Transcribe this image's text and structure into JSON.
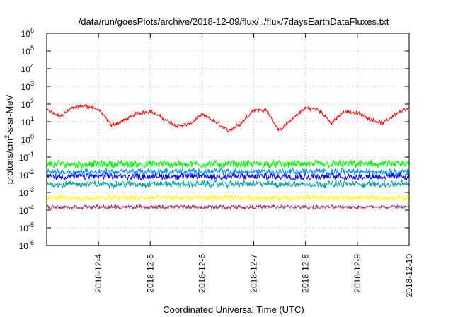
{
  "chart_data": {
    "type": "line",
    "title": "/data/run/goesPlots/archive/2018-12-09/flux/../flux/7daysEarthDataFluxes.txt",
    "xlabel": "Coordinated Universal Time (UTC)",
    "ylabel_parts": [
      "protons/cm",
      "2",
      "-s-sr-MeV"
    ],
    "yscale": "log",
    "ylim_exponent": [
      -6,
      6
    ],
    "y_ticks": [
      {
        "base": "10",
        "exp": "-6"
      },
      {
        "base": "10",
        "exp": "-5"
      },
      {
        "base": "10",
        "exp": "-4"
      },
      {
        "base": "10",
        "exp": "-3"
      },
      {
        "base": "10",
        "exp": "-2"
      },
      {
        "base": "10",
        "exp": "-1"
      },
      {
        "base": "10",
        "exp": "0"
      },
      {
        "base": "10",
        "exp": "1"
      },
      {
        "base": "10",
        "exp": "2"
      },
      {
        "base": "10",
        "exp": "3"
      },
      {
        "base": "10",
        "exp": "4"
      },
      {
        "base": "10",
        "exp": "5"
      },
      {
        "base": "10",
        "exp": "6"
      }
    ],
    "xlim": [
      "2018-12-03 00:00",
      "2018-12-10 00:00"
    ],
    "x_ticks": [
      "2018-12-4",
      "2018-12-5",
      "2018-12-6",
      "2018-12-7",
      "2018-12-8",
      "2018-12-9",
      "2018-12-10"
    ],
    "grid": true,
    "legend": "none",
    "series": [
      {
        "color": "#ff0000",
        "noise_decades": 0.18,
        "x": [
          "2018-12-03 00:00",
          "2018-12-03 06:00",
          "2018-12-03 12:00",
          "2018-12-03 18:00",
          "2018-12-04 00:00",
          "2018-12-04 06:00",
          "2018-12-04 12:00",
          "2018-12-04 18:00",
          "2018-12-05 00:00",
          "2018-12-05 06:00",
          "2018-12-05 12:00",
          "2018-12-05 18:00",
          "2018-12-06 00:00",
          "2018-12-06 06:00",
          "2018-12-06 12:00",
          "2018-12-06 18:00",
          "2018-12-07 00:00",
          "2018-12-07 06:00",
          "2018-12-07 12:00",
          "2018-12-07 18:00",
          "2018-12-08 00:00",
          "2018-12-08 06:00",
          "2018-12-08 12:00",
          "2018-12-08 18:00",
          "2018-12-09 00:00",
          "2018-12-09 06:00",
          "2018-12-09 12:00",
          "2018-12-09 18:00",
          "2018-12-10 00:00"
        ],
        "y": [
          45,
          20,
          60,
          80,
          50,
          6,
          12,
          30,
          40,
          15,
          6,
          7,
          25,
          10,
          3,
          8,
          50,
          40,
          3,
          15,
          60,
          50,
          8,
          40,
          30,
          15,
          8,
          30,
          55
        ]
      },
      {
        "color": "#00ff00",
        "noise_decades": 0.35,
        "x": [
          "2018-12-03 00:00",
          "2018-12-04 00:00",
          "2018-12-05 00:00",
          "2018-12-06 00:00",
          "2018-12-07 00:00",
          "2018-12-08 00:00",
          "2018-12-09 00:00",
          "2018-12-10 00:00"
        ],
        "y": [
          0.04,
          0.04,
          0.04,
          0.04,
          0.04,
          0.04,
          0.04,
          0.04
        ]
      },
      {
        "color": "#00a0a0",
        "noise_decades": 0.3,
        "x": [
          "2018-12-03 00:00",
          "2018-12-04 00:00",
          "2018-12-05 00:00",
          "2018-12-06 00:00",
          "2018-12-07 00:00",
          "2018-12-08 00:00",
          "2018-12-09 00:00",
          "2018-12-10 00:00"
        ],
        "y": [
          0.003,
          0.003,
          0.003,
          0.003,
          0.003,
          0.003,
          0.003,
          0.003
        ]
      },
      {
        "color": "#0090ff",
        "noise_decades": 0.3,
        "x": [
          "2018-12-03 00:00",
          "2018-12-04 00:00",
          "2018-12-05 00:00",
          "2018-12-06 00:00",
          "2018-12-07 00:00",
          "2018-12-08 00:00",
          "2018-12-09 00:00",
          "2018-12-10 00:00"
        ],
        "y": [
          0.015,
          0.015,
          0.015,
          0.015,
          0.015,
          0.015,
          0.015,
          0.015
        ]
      },
      {
        "color": "#0000ff",
        "noise_decades": 0.3,
        "x": [
          "2018-12-03 00:00",
          "2018-12-04 00:00",
          "2018-12-05 00:00",
          "2018-12-06 00:00",
          "2018-12-07 00:00",
          "2018-12-08 00:00",
          "2018-12-09 00:00",
          "2018-12-10 00:00"
        ],
        "y": [
          0.008,
          0.008,
          0.008,
          0.008,
          0.008,
          0.008,
          0.008,
          0.008
        ]
      },
      {
        "color": "#ffff00",
        "noise_decades": 0.22,
        "x": [
          "2018-12-03 00:00",
          "2018-12-04 00:00",
          "2018-12-05 00:00",
          "2018-12-06 00:00",
          "2018-12-07 00:00",
          "2018-12-08 00:00",
          "2018-12-09 00:00",
          "2018-12-10 00:00"
        ],
        "y": [
          0.0005,
          0.0005,
          0.0005,
          0.0005,
          0.0005,
          0.0005,
          0.0005,
          0.0005
        ]
      },
      {
        "color": "#993366",
        "noise_decades": 0.18,
        "x": [
          "2018-12-03 00:00",
          "2018-12-04 00:00",
          "2018-12-05 00:00",
          "2018-12-06 00:00",
          "2018-12-07 00:00",
          "2018-12-08 00:00",
          "2018-12-09 00:00",
          "2018-12-10 00:00"
        ],
        "y": [
          0.00015,
          0.00015,
          0.00015,
          0.00015,
          0.00015,
          0.00015,
          0.00015,
          0.00015
        ]
      }
    ]
  }
}
